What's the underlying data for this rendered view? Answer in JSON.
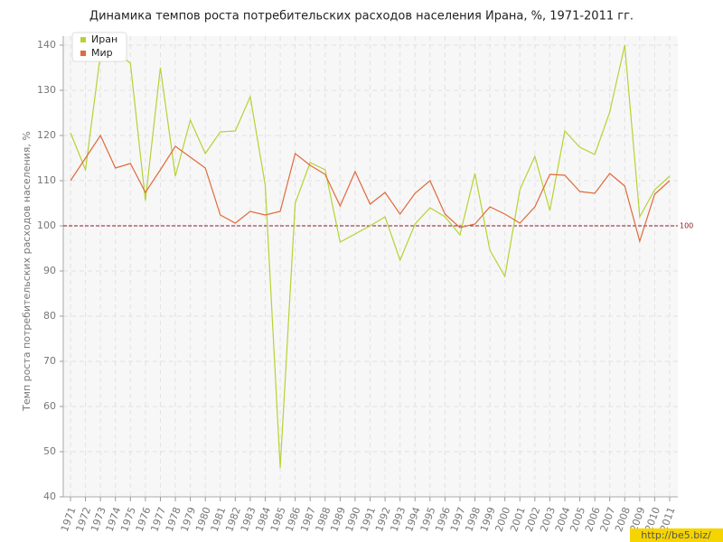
{
  "chart_data": {
    "type": "line",
    "title": "Динамика темпов роста потребительских расходов населения Ирана, %, 1971-2011 гг.",
    "y_label": "Темп роста потребительских расходов населения, %",
    "categories": [
      "1971",
      "1972",
      "1973",
      "1974",
      "1975",
      "1976",
      "1977",
      "1978",
      "1979",
      "1980",
      "1981",
      "1982",
      "1983",
      "1984",
      "1985",
      "1986",
      "1987",
      "1988",
      "1989",
      "1990",
      "1991",
      "1992",
      "1993",
      "1994",
      "1995",
      "1996",
      "1997",
      "1998",
      "1999",
      "2000",
      "2001",
      "2002",
      "2003",
      "2004",
      "2005",
      "2006",
      "2007",
      "2008",
      "2009",
      "2010",
      "2011"
    ],
    "series": [
      {
        "name": "Иран",
        "color": "#b5d334",
        "values": [
          120.6,
          112.4,
          138,
          138.6,
          136,
          105.6,
          135,
          111,
          123.4,
          116,
          120.8,
          121,
          128.6,
          109,
          46.4,
          105,
          114,
          112.4,
          96.4,
          98.2,
          100,
          102,
          92.4,
          100.4,
          104,
          102,
          98,
          111.6,
          94.6,
          88.8,
          108,
          115.4,
          103.4,
          121,
          117.4,
          115.8,
          125.2,
          140,
          102,
          108,
          111
        ]
      },
      {
        "name": "Мир",
        "color": "#e06a3b",
        "values": [
          110,
          115,
          120,
          112.8,
          113.8,
          107.4,
          112.4,
          117.6,
          115.2,
          112.8,
          102.4,
          100.6,
          103.2,
          102.4,
          103.2,
          116,
          113.4,
          111.4,
          104.4,
          112,
          104.8,
          107.4,
          102.6,
          107.2,
          110,
          102.6,
          99.6,
          100.4,
          104.2,
          102.6,
          100.6,
          104.2,
          111.4,
          111.2,
          107.6,
          107.2,
          111.6,
          108.8,
          96.6,
          107,
          110
        ]
      }
    ],
    "reference_line": 100,
    "ylim": [
      40,
      140
    ],
    "yticks": [
      40,
      50,
      60,
      70,
      80,
      90,
      100,
      110,
      120,
      130,
      140
    ],
    "grid": true,
    "legend": "top-left",
    "watermark": "http://be5.biz/"
  }
}
